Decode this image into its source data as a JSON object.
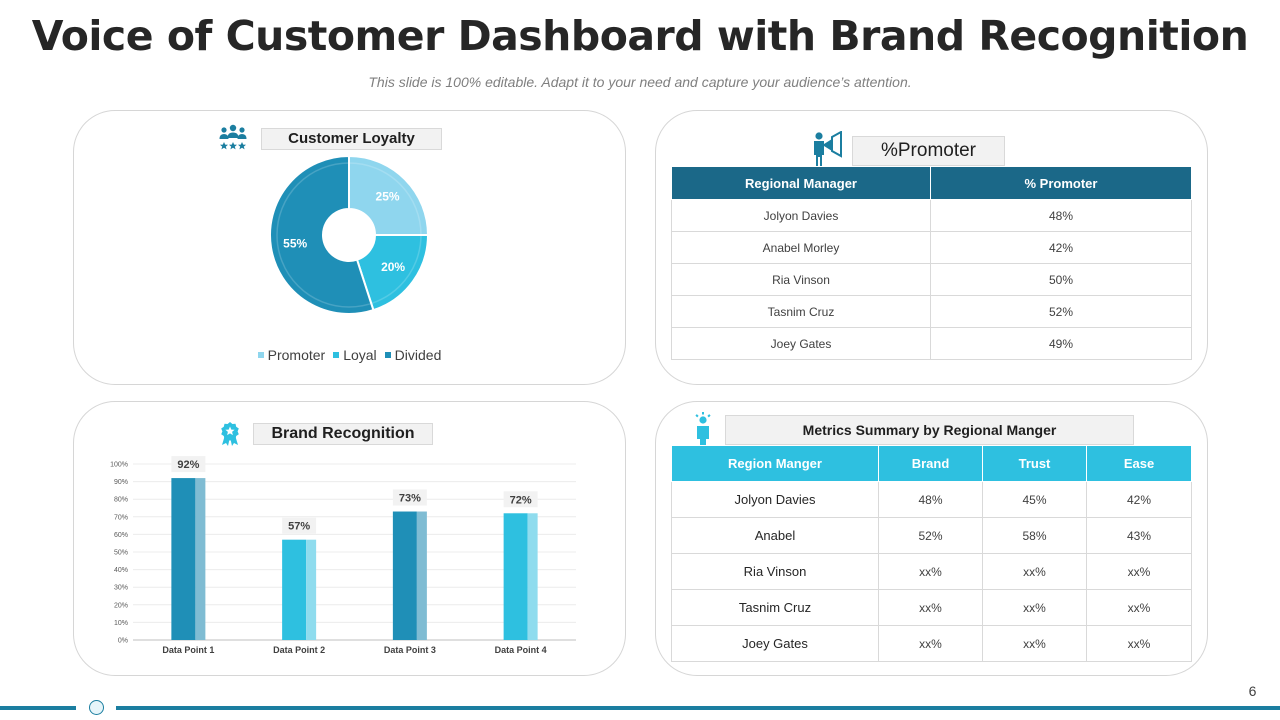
{
  "title": "Voice of Customer Dashboard with Brand Recognition",
  "subtitle": "This slide is 100% editable. Adapt it to your need and capture your audience’s attention.",
  "colors": {
    "dark_blue": "#1b6888",
    "mid_blue": "#1f8fb7",
    "cyan": "#2ec0e0",
    "light_blue": "#8fd6ee",
    "light_cyan": "#88ddee"
  },
  "loyalty": {
    "header": "Customer Loyalty",
    "icon": "people-group-icon",
    "chart_data": {
      "type": "pie",
      "variant": "donut",
      "categories": [
        "Promoter",
        "Loyal",
        "Divided"
      ],
      "values": [
        25,
        20,
        55
      ],
      "labels": [
        "25%",
        "20%",
        "55%"
      ],
      "colors": [
        "#8fd6ee",
        "#2ec0e0",
        "#1f8fb7"
      ],
      "legend": "bottom"
    }
  },
  "promoter": {
    "header": "%Promoter",
    "icon": "megaphone-person-icon",
    "columns": [
      "Regional Manager",
      "% Promoter"
    ],
    "rows": [
      [
        "Jolyon Davies",
        "48%"
      ],
      [
        "Anabel Morley",
        "42%"
      ],
      [
        "Ria Vinson",
        "50%"
      ],
      [
        "Tasnim Cruz",
        "52%"
      ],
      [
        "Joey Gates",
        "49%"
      ]
    ]
  },
  "brand": {
    "header": "Brand Recognition",
    "icon": "award-badge-icon",
    "chart_data": {
      "type": "bar",
      "categories": [
        "Data Point 1",
        "Data Point 2",
        "Data Point 3",
        "Data Point 4"
      ],
      "values": [
        92,
        57,
        73,
        72
      ],
      "labels": [
        "92%",
        "57%",
        "73%",
        "72%"
      ],
      "ylim": [
        0,
        100
      ],
      "yticks": [
        "0%",
        "10%",
        "20%",
        "30%",
        "40%",
        "50%",
        "60%",
        "70%",
        "80%",
        "90%",
        "100%"
      ],
      "grid": true,
      "bar_colors": [
        "#1f8fb7",
        "#2ec0e0",
        "#1f8fb7",
        "#2ec0e0"
      ],
      "shade_colors": [
        "#7fbcd3",
        "#8fdcee",
        "#7fbcd3",
        "#8fdcee"
      ]
    }
  },
  "metrics": {
    "header": "Metrics Summary by Regional Manger",
    "icon": "person-idea-icon",
    "columns": [
      "Region Manger",
      "Brand",
      "Trust",
      "Ease"
    ],
    "rows": [
      [
        "Jolyon Davies",
        "48%",
        "45%",
        "42%"
      ],
      [
        "Anabel",
        "52%",
        "58%",
        "43%"
      ],
      [
        "Ria Vinson",
        "xx%",
        "xx%",
        "xx%"
      ],
      [
        "Tasnim Cruz",
        "xx%",
        "xx%",
        "xx%"
      ],
      [
        "Joey Gates",
        "xx%",
        "xx%",
        "xx%"
      ]
    ]
  },
  "page_number": "6"
}
